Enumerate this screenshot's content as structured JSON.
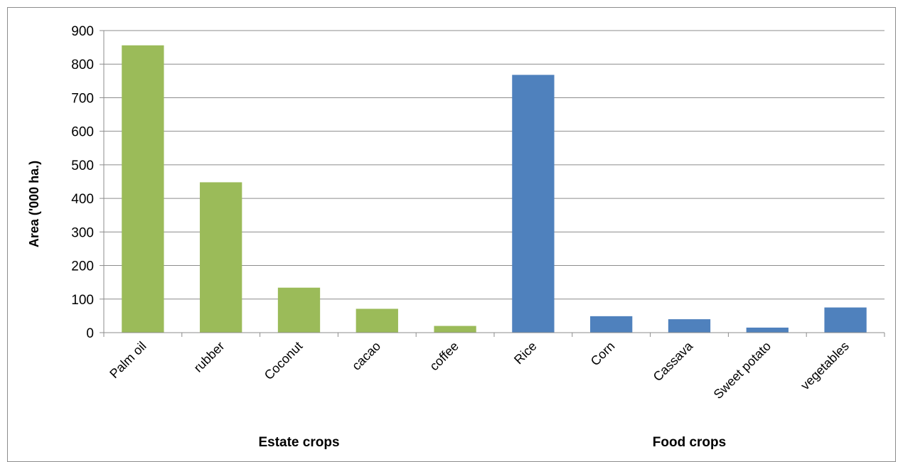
{
  "chart_data": {
    "type": "bar",
    "ylabel": "Area ('000 ha.)",
    "ylim": [
      0,
      900
    ],
    "yticks": [
      "0",
      "100",
      "200",
      "300",
      "400",
      "500",
      "600",
      "700",
      "800",
      "900"
    ],
    "grid": true,
    "groups": [
      {
        "name": "Estate crops",
        "color": "#9bbb59",
        "categories": [
          "Palm oil",
          "rubber",
          "Coconut",
          "cacao",
          "coffee"
        ],
        "values": [
          856,
          448,
          134,
          71,
          20
        ]
      },
      {
        "name": "Food crops",
        "color": "#4f81bd",
        "categories": [
          "Rice",
          "Corn",
          "Cassava",
          "Sweet potato",
          "vegetables"
        ],
        "values": [
          768,
          49,
          40,
          15,
          75
        ]
      }
    ]
  }
}
